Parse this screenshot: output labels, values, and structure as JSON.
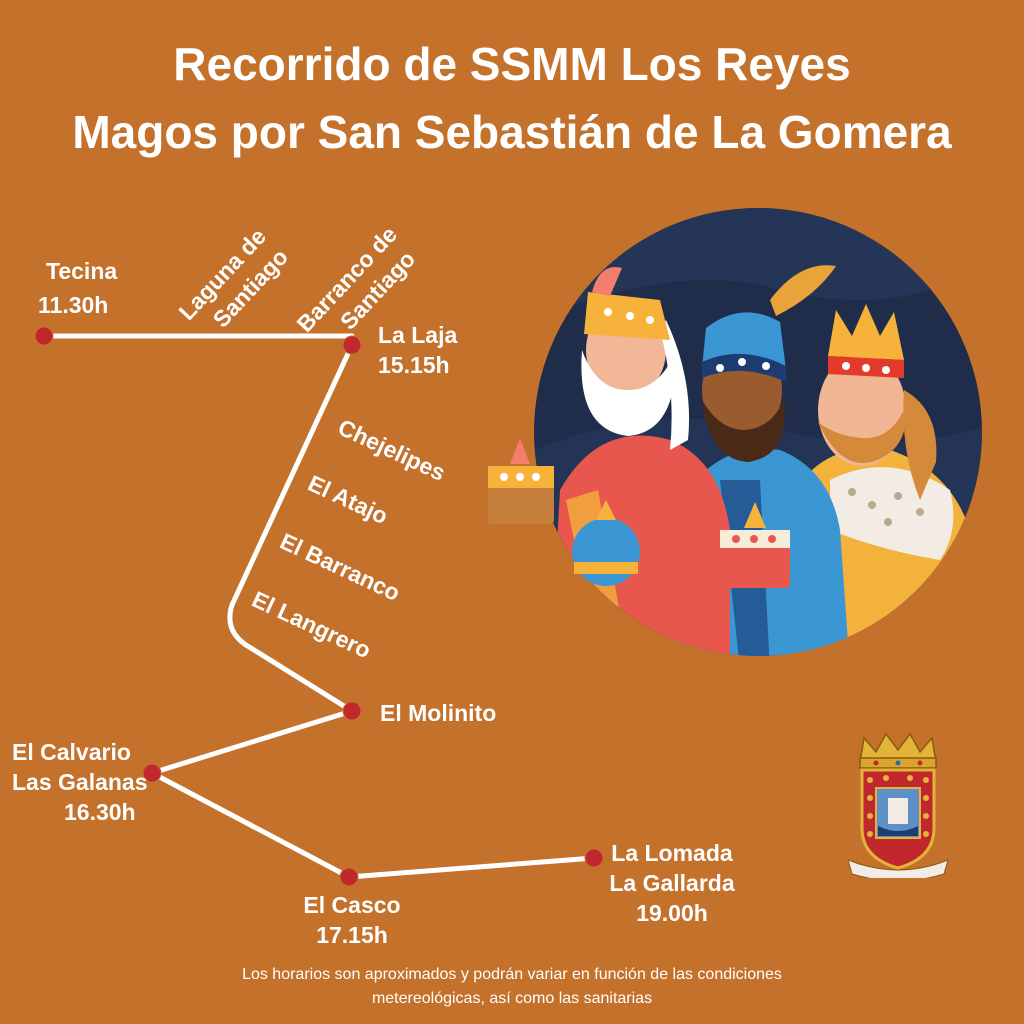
{
  "title": {
    "line1": "Recorrido de SSMM Los Reyes",
    "line2": "Magos por San Sebastián de La Gomera"
  },
  "colors": {
    "background": "#c4712b",
    "route_line": "#ffffff",
    "stop_dot": "#c0282e",
    "text": "#ffffff"
  },
  "stops": {
    "tecina": {
      "name": "Tecina",
      "time": "11.30h"
    },
    "la_laja": {
      "name": "La Laja",
      "time": "15.15h"
    },
    "el_molinito": {
      "name": "El Molinito"
    },
    "el_calvario": {
      "name_line1": "El Calvario",
      "name_line2": "Las Galanas",
      "time": "16.30h"
    },
    "el_casco": {
      "name": "El Casco",
      "time": "17.15h"
    },
    "la_lomada": {
      "name_line1": "La Lomada",
      "name_line2": "La Gallarda",
      "time": "19.00h"
    }
  },
  "passing_places": {
    "laguna_line1": "Laguna de",
    "laguna_line2": "Santiago",
    "barranco_line1": "Barranco de",
    "barranco_line2": "Santiago",
    "chejelipes": "Chejelipes",
    "el_atajo": "El Atajo",
    "el_barranco": "El Barranco",
    "el_langrero": "El Langrero"
  },
  "illustration": {
    "icon": "three-kings-illustration"
  },
  "emblem": {
    "icon": "coat-of-arms-icon"
  },
  "footer": {
    "line1": "Los horarios son aproximados y podrán variar en función de las condiciones",
    "line2": "metereológicas, así como las sanitarias"
  }
}
